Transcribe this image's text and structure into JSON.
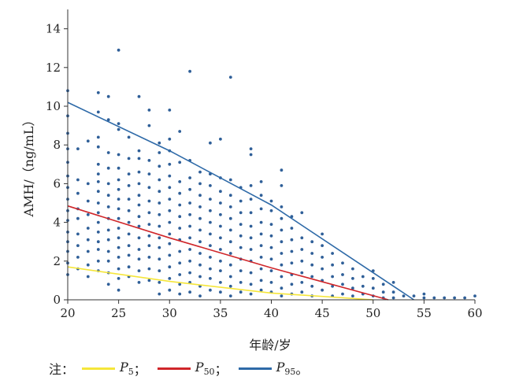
{
  "chart_data": {
    "type": "scatter",
    "xlabel": "年龄/岁",
    "ylabel": "AMH/（ng/mL）",
    "xlim": [
      20,
      60
    ],
    "ylim": [
      0,
      15
    ],
    "x_ticks": [
      "20",
      "25",
      "30",
      "35",
      "40",
      "45",
      "50",
      "55",
      "60"
    ],
    "y_ticks": [
      "0",
      "2",
      "4",
      "6",
      "8",
      "10",
      "12",
      "14"
    ],
    "grid": false,
    "point_color": "#2f5f98",
    "points": [
      [
        20,
        10.8
      ],
      [
        20,
        9.5
      ],
      [
        20,
        8.6
      ],
      [
        20,
        7.8
      ],
      [
        20,
        7.1
      ],
      [
        20,
        6.4
      ],
      [
        20,
        5.8
      ],
      [
        20,
        5.2
      ],
      [
        20,
        4.6
      ],
      [
        20,
        4.1
      ],
      [
        20,
        3.5
      ],
      [
        20,
        3.0
      ],
      [
        20,
        2.5
      ],
      [
        20,
        1.9
      ],
      [
        20,
        1.3
      ],
      [
        21,
        7.8
      ],
      [
        21,
        6.2
      ],
      [
        21,
        5.5
      ],
      [
        21,
        4.7
      ],
      [
        21,
        4.2
      ],
      [
        21,
        3.4
      ],
      [
        21,
        2.8
      ],
      [
        21,
        2.2
      ],
      [
        21,
        1.6
      ],
      [
        22,
        8.2
      ],
      [
        22,
        6.0
      ],
      [
        22,
        5.1
      ],
      [
        22,
        4.4
      ],
      [
        22,
        3.7
      ],
      [
        22,
        3.1
      ],
      [
        22,
        2.5
      ],
      [
        22,
        1.8
      ],
      [
        22,
        1.2
      ],
      [
        23,
        10.7
      ],
      [
        23,
        9.7
      ],
      [
        23,
        8.4
      ],
      [
        23,
        7.9
      ],
      [
        23,
        7.0
      ],
      [
        23,
        6.5
      ],
      [
        23,
        6.1
      ],
      [
        23,
        5.6
      ],
      [
        23,
        5.0
      ],
      [
        23,
        4.5
      ],
      [
        23,
        4.0
      ],
      [
        23,
        3.5
      ],
      [
        23,
        3.0
      ],
      [
        23,
        2.6
      ],
      [
        23,
        2.0
      ],
      [
        23,
        1.5
      ],
      [
        24,
        10.5
      ],
      [
        24,
        9.3
      ],
      [
        24,
        7.6
      ],
      [
        24,
        6.8
      ],
      [
        24,
        6.0
      ],
      [
        24,
        5.4
      ],
      [
        24,
        4.8
      ],
      [
        24,
        4.2
      ],
      [
        24,
        3.6
      ],
      [
        24,
        3.1
      ],
      [
        24,
        2.5
      ],
      [
        24,
        2.0
      ],
      [
        24,
        1.4
      ],
      [
        24,
        0.8
      ],
      [
        25,
        12.9
      ],
      [
        25,
        9.1
      ],
      [
        25,
        8.8
      ],
      [
        25,
        7.5
      ],
      [
        25,
        6.8
      ],
      [
        25,
        6.2
      ],
      [
        25,
        5.7
      ],
      [
        25,
        5.2
      ],
      [
        25,
        4.7
      ],
      [
        25,
        4.2
      ],
      [
        25,
        3.7
      ],
      [
        25,
        3.2
      ],
      [
        25,
        2.7
      ],
      [
        25,
        2.2
      ],
      [
        25,
        1.6
      ],
      [
        25,
        1.1
      ],
      [
        25,
        0.5
      ],
      [
        26,
        8.4
      ],
      [
        26,
        7.3
      ],
      [
        26,
        6.5
      ],
      [
        26,
        5.9
      ],
      [
        26,
        5.2
      ],
      [
        26,
        4.6
      ],
      [
        26,
        4.0
      ],
      [
        26,
        3.4
      ],
      [
        26,
        2.8
      ],
      [
        26,
        2.3
      ],
      [
        26,
        1.7
      ],
      [
        26,
        1.2
      ],
      [
        27,
        10.5
      ],
      [
        27,
        7.7
      ],
      [
        27,
        7.3
      ],
      [
        27,
        6.6
      ],
      [
        27,
        6.0
      ],
      [
        27,
        5.4
      ],
      [
        27,
        4.9
      ],
      [
        27,
        4.3
      ],
      [
        27,
        3.8
      ],
      [
        27,
        3.2
      ],
      [
        27,
        2.6
      ],
      [
        27,
        2.1
      ],
      [
        27,
        1.5
      ],
      [
        27,
        0.9
      ],
      [
        28,
        9.8
      ],
      [
        28,
        9.0
      ],
      [
        28,
        7.2
      ],
      [
        28,
        6.5
      ],
      [
        28,
        5.8
      ],
      [
        28,
        5.1
      ],
      [
        28,
        4.5
      ],
      [
        28,
        3.9
      ],
      [
        28,
        3.3
      ],
      [
        28,
        2.8
      ],
      [
        28,
        2.2
      ],
      [
        28,
        1.6
      ],
      [
        28,
        1.0
      ],
      [
        29,
        8.1
      ],
      [
        29,
        7.6
      ],
      [
        29,
        6.9
      ],
      [
        29,
        6.2
      ],
      [
        29,
        5.6
      ],
      [
        29,
        5.0
      ],
      [
        29,
        4.4
      ],
      [
        29,
        3.8
      ],
      [
        29,
        3.2
      ],
      [
        29,
        2.7
      ],
      [
        29,
        2.1
      ],
      [
        29,
        1.5
      ],
      [
        29,
        0.9
      ],
      [
        29,
        0.3
      ],
      [
        30,
        9.8
      ],
      [
        30,
        8.3
      ],
      [
        30,
        7.7
      ],
      [
        30,
        7.0
      ],
      [
        30,
        6.4
      ],
      [
        30,
        5.8
      ],
      [
        30,
        5.2
      ],
      [
        30,
        4.6
      ],
      [
        30,
        4.0
      ],
      [
        30,
        3.4
      ],
      [
        30,
        2.9
      ],
      [
        30,
        2.3
      ],
      [
        30,
        1.7
      ],
      [
        30,
        1.1
      ],
      [
        30,
        0.5
      ],
      [
        31,
        8.7
      ],
      [
        31,
        7.1
      ],
      [
        31,
        6.1
      ],
      [
        31,
        5.5
      ],
      [
        31,
        4.9
      ],
      [
        31,
        4.3
      ],
      [
        31,
        3.7
      ],
      [
        31,
        3.1
      ],
      [
        31,
        2.5
      ],
      [
        31,
        1.9
      ],
      [
        31,
        1.3
      ],
      [
        31,
        0.8
      ],
      [
        31,
        0.3
      ],
      [
        32,
        11.8
      ],
      [
        32,
        7.2
      ],
      [
        32,
        6.3
      ],
      [
        32,
        5.7
      ],
      [
        32,
        5.0
      ],
      [
        32,
        4.4
      ],
      [
        32,
        3.8
      ],
      [
        32,
        3.2
      ],
      [
        32,
        2.6
      ],
      [
        32,
        2.0
      ],
      [
        32,
        1.4
      ],
      [
        32,
        0.9
      ],
      [
        32,
        0.4
      ],
      [
        33,
        6.6
      ],
      [
        33,
        6.0
      ],
      [
        33,
        5.4
      ],
      [
        33,
        4.8
      ],
      [
        33,
        4.2
      ],
      [
        33,
        3.6
      ],
      [
        33,
        3.0
      ],
      [
        33,
        2.4
      ],
      [
        33,
        1.8
      ],
      [
        33,
        1.2
      ],
      [
        33,
        0.7
      ],
      [
        33,
        0.2
      ],
      [
        34,
        8.1
      ],
      [
        34,
        6.5
      ],
      [
        34,
        5.9
      ],
      [
        34,
        5.2
      ],
      [
        34,
        4.6
      ],
      [
        34,
        4.0
      ],
      [
        34,
        3.4
      ],
      [
        34,
        2.8
      ],
      [
        34,
        2.2
      ],
      [
        34,
        1.6
      ],
      [
        34,
        1.1
      ],
      [
        34,
        0.5
      ],
      [
        35,
        8.3
      ],
      [
        35,
        6.3
      ],
      [
        35,
        5.6
      ],
      [
        35,
        5.0
      ],
      [
        35,
        4.4
      ],
      [
        35,
        3.8
      ],
      [
        35,
        3.2
      ],
      [
        35,
        2.6
      ],
      [
        35,
        2.0
      ],
      [
        35,
        1.5
      ],
      [
        35,
        0.9
      ],
      [
        35,
        0.4
      ],
      [
        36,
        11.5
      ],
      [
        36,
        6.2
      ],
      [
        36,
        5.4
      ],
      [
        36,
        4.8
      ],
      [
        36,
        4.2
      ],
      [
        36,
        3.6
      ],
      [
        36,
        3.0
      ],
      [
        36,
        2.4
      ],
      [
        36,
        1.8
      ],
      [
        36,
        1.2
      ],
      [
        36,
        0.7
      ],
      [
        36,
        0.2
      ],
      [
        37,
        5.8
      ],
      [
        37,
        5.1
      ],
      [
        37,
        4.5
      ],
      [
        37,
        3.9
      ],
      [
        37,
        3.3
      ],
      [
        37,
        2.7
      ],
      [
        37,
        2.1
      ],
      [
        37,
        1.5
      ],
      [
        37,
        0.9
      ],
      [
        37,
        0.4
      ],
      [
        38,
        7.8
      ],
      [
        38,
        7.5
      ],
      [
        38,
        5.9
      ],
      [
        38,
        5.2
      ],
      [
        38,
        4.5
      ],
      [
        38,
        3.8
      ],
      [
        38,
        3.2
      ],
      [
        38,
        2.6
      ],
      [
        38,
        2.0
      ],
      [
        38,
        1.4
      ],
      [
        38,
        0.8
      ],
      [
        38,
        0.3
      ],
      [
        39,
        6.1
      ],
      [
        39,
        5.4
      ],
      [
        39,
        4.7
      ],
      [
        39,
        4.0
      ],
      [
        39,
        3.4
      ],
      [
        39,
        2.8
      ],
      [
        39,
        2.2
      ],
      [
        39,
        1.6
      ],
      [
        39,
        1.0
      ],
      [
        39,
        0.5
      ],
      [
        40,
        5.1
      ],
      [
        40,
        4.6
      ],
      [
        40,
        3.9
      ],
      [
        40,
        3.3
      ],
      [
        40,
        2.7
      ],
      [
        40,
        2.1
      ],
      [
        40,
        1.5
      ],
      [
        40,
        0.9
      ],
      [
        40,
        0.4
      ],
      [
        41,
        6.7
      ],
      [
        41,
        5.9
      ],
      [
        41,
        4.8
      ],
      [
        41,
        4.2
      ],
      [
        41,
        3.6
      ],
      [
        41,
        3.0
      ],
      [
        41,
        2.4
      ],
      [
        41,
        1.8
      ],
      [
        41,
        1.2
      ],
      [
        41,
        0.6
      ],
      [
        41,
        0.2
      ],
      [
        42,
        4.3
      ],
      [
        42,
        3.7
      ],
      [
        42,
        3.1
      ],
      [
        42,
        2.5
      ],
      [
        42,
        1.9
      ],
      [
        42,
        1.3
      ],
      [
        42,
        0.8
      ],
      [
        42,
        0.3
      ],
      [
        43,
        4.5
      ],
      [
        43,
        3.2
      ],
      [
        43,
        2.6
      ],
      [
        43,
        2.0
      ],
      [
        43,
        1.4
      ],
      [
        43,
        0.9
      ],
      [
        43,
        0.4
      ],
      [
        44,
        3.0
      ],
      [
        44,
        2.4
      ],
      [
        44,
        1.8
      ],
      [
        44,
        1.2
      ],
      [
        44,
        0.7
      ],
      [
        44,
        0.2
      ],
      [
        45,
        3.4
      ],
      [
        45,
        2.8
      ],
      [
        45,
        2.2
      ],
      [
        45,
        1.6
      ],
      [
        45,
        1.0
      ],
      [
        45,
        0.5
      ],
      [
        46,
        2.4
      ],
      [
        46,
        1.8
      ],
      [
        46,
        1.2
      ],
      [
        46,
        0.7
      ],
      [
        46,
        0.2
      ],
      [
        47,
        1.9
      ],
      [
        47,
        1.3
      ],
      [
        47,
        0.8
      ],
      [
        47,
        0.3
      ],
      [
        48,
        1.6
      ],
      [
        48,
        1.1
      ],
      [
        48,
        0.6
      ],
      [
        48,
        0.2
      ],
      [
        49,
        1.2
      ],
      [
        49,
        0.7
      ],
      [
        49,
        0.3
      ],
      [
        50,
        1.5
      ],
      [
        50,
        1.1
      ],
      [
        50,
        0.6
      ],
      [
        50,
        0.2
      ],
      [
        51,
        0.8
      ],
      [
        51,
        0.4
      ],
      [
        51,
        0.1
      ],
      [
        52,
        0.9
      ],
      [
        52,
        0.4
      ],
      [
        52,
        0.1
      ],
      [
        53,
        0.2
      ],
      [
        54,
        0.2
      ],
      [
        55,
        0.3
      ],
      [
        55,
        0.1
      ],
      [
        56,
        0.1
      ],
      [
        57,
        0.1
      ],
      [
        58,
        0.1
      ],
      [
        59,
        0.1
      ],
      [
        60,
        0.2
      ]
    ],
    "series": [
      {
        "name": "P5",
        "color": "#f5e63a",
        "x": [
          20,
          30,
          40,
          50
        ],
        "values": [
          1.7,
          0.95,
          0.35,
          0
        ]
      },
      {
        "name": "P50",
        "color": "#d0262a",
        "x": [
          20,
          30,
          40,
          51.5
        ],
        "values": [
          4.85,
          3.2,
          1.65,
          0
        ]
      },
      {
        "name": "P95",
        "color": "#2e6aa8",
        "x": [
          20,
          30,
          40,
          54
        ],
        "values": [
          10.2,
          7.7,
          4.9,
          0
        ]
      }
    ]
  },
  "legend": {
    "note": "注：",
    "items": [
      {
        "base": "P",
        "sub": "5",
        "sep": "；",
        "color": "#f5e63a"
      },
      {
        "base": "P",
        "sub": "50",
        "sep": "；",
        "color": "#d0262a"
      },
      {
        "base": "P",
        "sub": "95",
        "sep": "。",
        "color": "#2e6aa8"
      }
    ]
  }
}
